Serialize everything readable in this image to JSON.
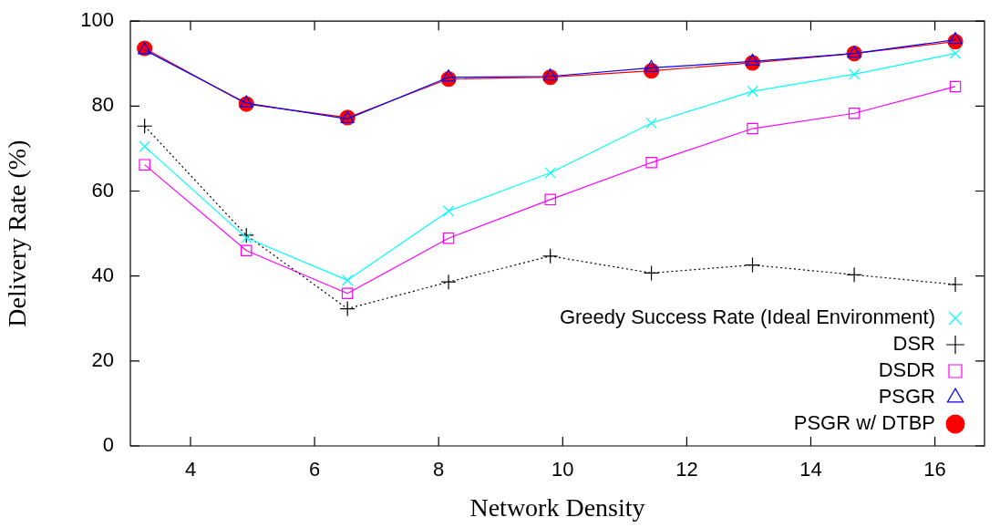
{
  "chart_data": {
    "type": "line",
    "xlabel": "Network Density",
    "ylabel": "Delivery Rate (%)",
    "x": [
      3.26,
      4.9,
      6.53,
      8.16,
      9.8,
      11.43,
      13.06,
      14.7,
      16.33
    ],
    "xlim": [
      3.03,
      16.8
    ],
    "xticks": [
      4,
      6,
      8,
      10,
      12,
      14,
      16
    ],
    "ylim": [
      0,
      100
    ],
    "yticks": [
      0,
      20,
      40,
      60,
      80,
      100
    ],
    "grid": false,
    "legend": "bottom right",
    "series": [
      {
        "name": "Greedy Success Rate (Ideal Environment)",
        "color": "#00ffff",
        "marker": "x",
        "line_style": "solid",
        "values": [
          70.5,
          49,
          39,
          55.3,
          64.3,
          76,
          83.5,
          87.5,
          92.4
        ]
      },
      {
        "name": "DSR",
        "color": "#000000",
        "marker": "cross",
        "line_style": "dotted",
        "values": [
          75.3,
          49.6,
          32.3,
          38.6,
          44.7,
          40.7,
          42.6,
          40.3,
          38
        ]
      },
      {
        "name": "DSDR",
        "color": "#ff00ff",
        "marker": "square",
        "line_style": "solid",
        "values": [
          66.2,
          46,
          35.9,
          48.9,
          58,
          66.7,
          74.7,
          78.3,
          84.6
        ]
      },
      {
        "name": "PSGR",
        "color": "#0000ff",
        "marker": "triangle",
        "line_style": "solid",
        "values": [
          93.2,
          80.7,
          77,
          86.8,
          87,
          89,
          90.5,
          92.4,
          95.6
        ]
      },
      {
        "name": "PSGR w/ DTBP",
        "color": "#ff0000",
        "marker": "circle",
        "line_style": "solid",
        "values": [
          93.6,
          80.5,
          77.3,
          86.4,
          86.8,
          88.3,
          90.2,
          92.4,
          95.2
        ]
      }
    ]
  }
}
